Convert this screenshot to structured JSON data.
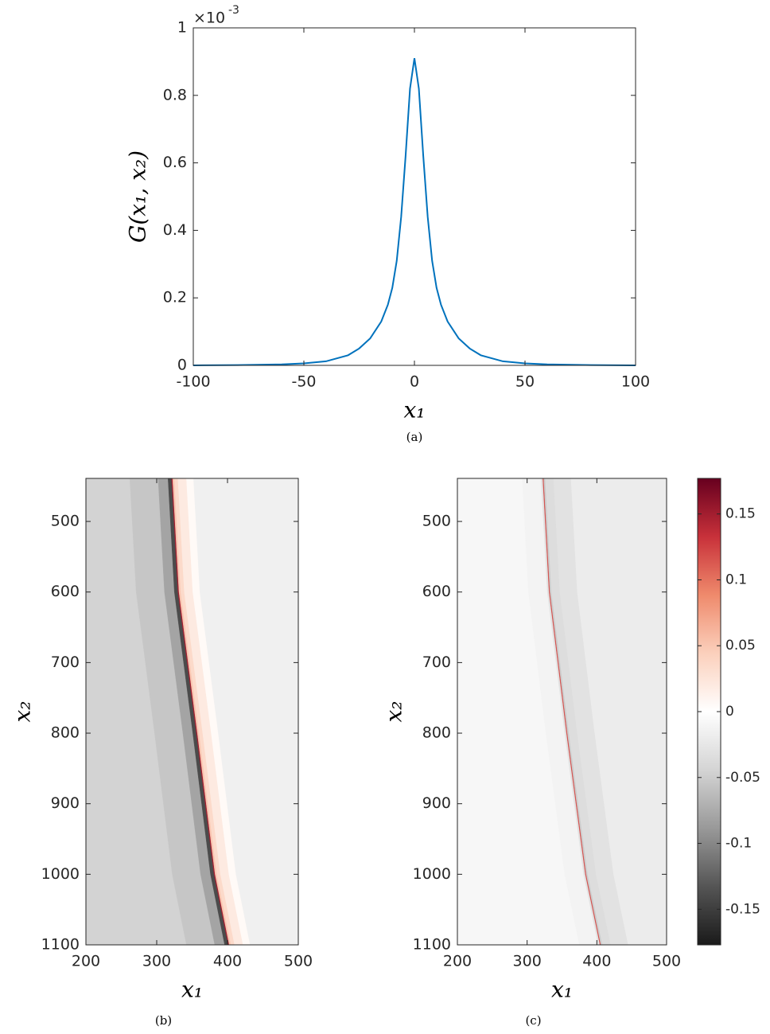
{
  "chart_data": [
    {
      "type": "line",
      "xlabel": "x₁",
      "ylabel": "G(x₁, x₂)",
      "y_multiplier": "×10",
      "y_multiplier_exponent": "-3",
      "caption": "(a)",
      "xlim": [
        -100,
        100
      ],
      "xticks": [
        -100,
        -50,
        0,
        50,
        100
      ],
      "ylim": [
        0,
        1
      ],
      "yticks": [
        0,
        0.2,
        0.4,
        0.6,
        0.8,
        1
      ],
      "color": "#0072bd",
      "x": [
        -100,
        -80,
        -60,
        -50,
        -40,
        -30,
        -25,
        -20,
        -15,
        -12,
        -10,
        -8,
        -6,
        -4,
        -2,
        0,
        2,
        4,
        6,
        8,
        10,
        12,
        15,
        20,
        25,
        30,
        40,
        50,
        60,
        80,
        100
      ],
      "values": [
        0,
        0.001,
        0.003,
        0.006,
        0.012,
        0.03,
        0.05,
        0.08,
        0.13,
        0.18,
        0.23,
        0.31,
        0.44,
        0.62,
        0.82,
        0.91,
        0.82,
        0.62,
        0.44,
        0.31,
        0.23,
        0.18,
        0.13,
        0.08,
        0.05,
        0.03,
        0.012,
        0.006,
        0.003,
        0.001,
        0
      ]
    },
    {
      "type": "heatmap",
      "xlabel": "x₁",
      "ylabel": "x₂",
      "caption": "(b)",
      "xlim": [
        200,
        500
      ],
      "xticks": [
        200,
        300,
        400,
        500
      ],
      "ylim": [
        439,
        1100
      ],
      "y_reversed": true,
      "yticks": [
        500,
        600,
        700,
        800,
        900,
        1000,
        1100
      ],
      "front_x2": [
        439,
        600,
        800,
        1000,
        1100
      ],
      "front_x1": [
        322,
        331,
        357,
        382,
        402
      ],
      "band_edges": [
        -300,
        -60,
        -20,
        -6,
        -1,
        0.5,
        3,
        8,
        20,
        30,
        300
      ],
      "band_values": [
        -0.045,
        -0.055,
        -0.08,
        -0.14,
        0.15,
        0.05,
        0.035,
        0.02,
        0.005,
        -0.015
      ]
    },
    {
      "type": "heatmap",
      "xlabel": "x₁",
      "ylabel": "x₂",
      "caption": "(c)",
      "xlim": [
        200,
        500
      ],
      "xticks": [
        200,
        300,
        400,
        500
      ],
      "ylim": [
        439,
        1100
      ],
      "y_reversed": true,
      "yticks": [
        500,
        600,
        700,
        800,
        900,
        1000,
        1100
      ],
      "front_x2": [
        439,
        600,
        800,
        1000,
        1100
      ],
      "front_x1": [
        323,
        332,
        357,
        384,
        405
      ],
      "band_edges": [
        -300,
        -30,
        -3,
        -0.5,
        0.8,
        3,
        15,
        40,
        300
      ],
      "band_values": [
        -0.008,
        -0.012,
        -0.03,
        0.12,
        -0.05,
        -0.035,
        -0.03,
        -0.02
      ],
      "colorbar": {
        "lim": [
          -0.177,
          0.177
        ],
        "ticks": [
          -0.15,
          -0.1,
          -0.05,
          0,
          0.05,
          0.1,
          0.15
        ],
        "colormap": [
          "#1a1a1a",
          "#555555",
          "#999999",
          "#d4d4d4",
          "#ffffff",
          "#fbd0bc",
          "#ef8a6c",
          "#c8313a",
          "#67001f"
        ]
      }
    }
  ]
}
